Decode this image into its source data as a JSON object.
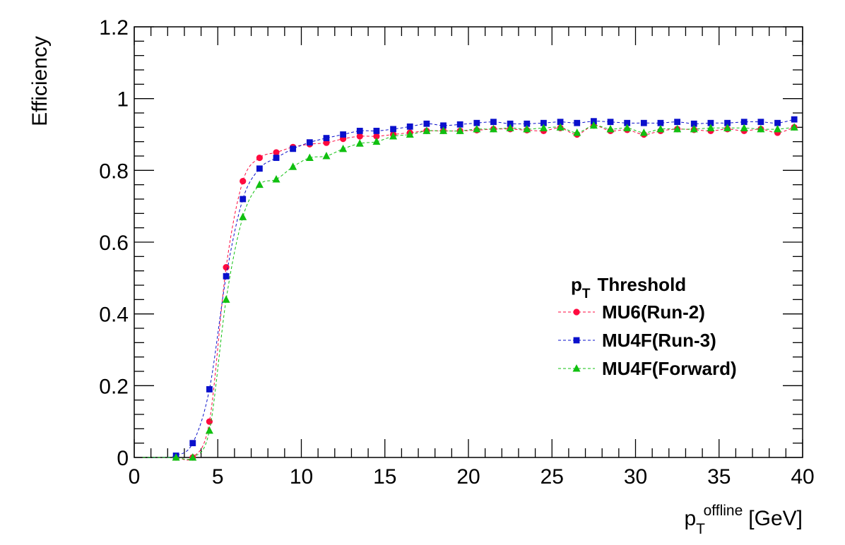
{
  "chart_data": {
    "type": "scatter",
    "xlabel": {
      "base": "p",
      "sub": "T",
      "sup": "offline",
      "unit": "[GeV]"
    },
    "ylabel": "Efficiency",
    "xlim": [
      0,
      40
    ],
    "ylim": [
      0,
      1.2
    ],
    "x_ticks": [
      "0",
      "5",
      "10",
      "15",
      "20",
      "25",
      "30",
      "35",
      "40"
    ],
    "y_ticks": [
      "0",
      "0.2",
      "0.4",
      "0.6",
      "0.8",
      "1",
      "1.2"
    ],
    "grid": false,
    "legend": {
      "position": "right",
      "title_base": "p",
      "title_sub": "T",
      "title_text": "Threshold"
    },
    "x": [
      0.5,
      1.5,
      2.5,
      3.5,
      4.5,
      5.5,
      6.5,
      7.5,
      8.5,
      9.5,
      10.5,
      11.5,
      12.5,
      13.5,
      14.5,
      15.5,
      16.5,
      17.5,
      18.5,
      19.5,
      20.5,
      21.5,
      22.5,
      23.5,
      24.5,
      25.5,
      26.5,
      27.5,
      28.5,
      29.5,
      30.5,
      31.5,
      32.5,
      33.5,
      34.5,
      35.5,
      36.5,
      37.5,
      38.5,
      39.5
    ],
    "series": [
      {
        "name": "MU6(Run-2)",
        "color": "#ff0a3f",
        "marker": "circle",
        "values": [
          0,
          0,
          0.0,
          0.0,
          0.1,
          0.53,
          0.77,
          0.835,
          0.85,
          0.865,
          0.873,
          0.877,
          0.888,
          0.895,
          0.895,
          0.9,
          0.905,
          0.91,
          0.91,
          0.91,
          0.912,
          0.915,
          0.915,
          0.912,
          0.91,
          0.918,
          0.9,
          0.925,
          0.91,
          0.913,
          0.9,
          0.91,
          0.915,
          0.913,
          0.91,
          0.915,
          0.91,
          0.915,
          0.905,
          0.92
        ]
      },
      {
        "name": "MU4F(Run-3)",
        "color": "#0a10cc",
        "marker": "square",
        "values": [
          0,
          0,
          0.005,
          0.04,
          0.19,
          0.505,
          0.72,
          0.805,
          0.835,
          0.86,
          0.878,
          0.89,
          0.9,
          0.91,
          0.91,
          0.915,
          0.922,
          0.93,
          0.925,
          0.928,
          0.932,
          0.935,
          0.93,
          0.93,
          0.932,
          0.935,
          0.932,
          0.937,
          0.935,
          0.932,
          0.932,
          0.932,
          0.935,
          0.93,
          0.932,
          0.932,
          0.935,
          0.935,
          0.932,
          0.942
        ]
      },
      {
        "name": "MU4F(Forward)",
        "color": "#10c010",
        "marker": "triangle",
        "values": [
          0,
          0,
          0.0,
          0.0,
          0.075,
          0.44,
          0.67,
          0.76,
          0.775,
          0.81,
          0.835,
          0.84,
          0.86,
          0.875,
          0.88,
          0.895,
          0.9,
          0.91,
          0.91,
          0.91,
          0.915,
          0.915,
          0.918,
          0.915,
          0.918,
          0.92,
          0.905,
          0.925,
          0.915,
          0.918,
          0.905,
          0.915,
          0.915,
          0.915,
          0.918,
          0.918,
          0.918,
          0.915,
          0.915,
          0.92
        ]
      }
    ]
  }
}
